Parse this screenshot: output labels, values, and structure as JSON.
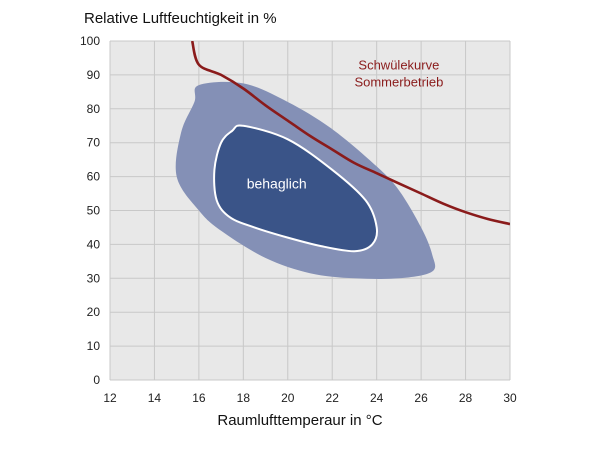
{
  "chart_data": {
    "type": "area",
    "title": "",
    "xlabel": "Raumlufttemperaur in °C",
    "ylabel": "Relative Luftfeuchtigkeit in %",
    "xlim": [
      12,
      30
    ],
    "ylim": [
      0,
      100
    ],
    "x_ticks": [
      12,
      14,
      16,
      18,
      20,
      22,
      24,
      26,
      28,
      30
    ],
    "y_ticks": [
      0,
      10,
      20,
      30,
      40,
      50,
      60,
      70,
      80,
      90,
      100
    ],
    "grid": true,
    "colors": {
      "grid": "#c8c8c8",
      "plot_background": "#e8e8e8",
      "outer_zone": "#8490b6",
      "inner_zone": "#3a5488",
      "inner_outline": "#ffffff",
      "curve": "#8a1b1b"
    },
    "regions": [
      {
        "name": "outer",
        "points": [
          [
            16,
            87
          ],
          [
            18,
            87.5
          ],
          [
            20,
            82
          ],
          [
            22,
            74
          ],
          [
            24,
            63
          ],
          [
            25,
            56
          ],
          [
            26,
            45
          ],
          [
            26.5,
            37
          ],
          [
            26.5,
            32
          ],
          [
            25,
            30
          ],
          [
            23,
            30
          ],
          [
            21,
            31.5
          ],
          [
            19,
            36
          ],
          [
            17,
            44
          ],
          [
            16,
            50
          ],
          [
            15,
            60
          ],
          [
            15.2,
            73
          ],
          [
            15.8,
            82
          ]
        ]
      },
      {
        "name": "inner",
        "label": "behaglich",
        "points": [
          [
            18,
            75
          ],
          [
            20,
            71
          ],
          [
            22,
            62
          ],
          [
            23.5,
            53
          ],
          [
            24,
            45
          ],
          [
            23.8,
            40
          ],
          [
            23,
            38
          ],
          [
            21.5,
            39.5
          ],
          [
            20,
            42
          ],
          [
            18.5,
            45
          ],
          [
            17.4,
            48
          ],
          [
            16.8,
            53
          ],
          [
            16.7,
            62
          ],
          [
            17,
            70
          ],
          [
            17.5,
            73.5
          ]
        ]
      }
    ],
    "series": [
      {
        "name": "Schwülekurve Sommerbetrieb",
        "x": [
          15.7,
          16,
          17,
          18,
          19,
          20,
          21,
          22,
          23,
          24,
          25,
          26,
          27,
          28,
          29,
          30
        ],
        "y": [
          100,
          93,
          90,
          86,
          81,
          76.5,
          72,
          68,
          64,
          61,
          58,
          55,
          52,
          49.5,
          47.5,
          46
        ]
      }
    ],
    "annotations": [
      {
        "text": "Schwülekurve",
        "x": 25,
        "y": 93
      },
      {
        "text": "Sommerbetrieb",
        "x": 25,
        "y": 88
      },
      {
        "text": "behaglich",
        "x": 19.5,
        "y": 58
      }
    ]
  }
}
